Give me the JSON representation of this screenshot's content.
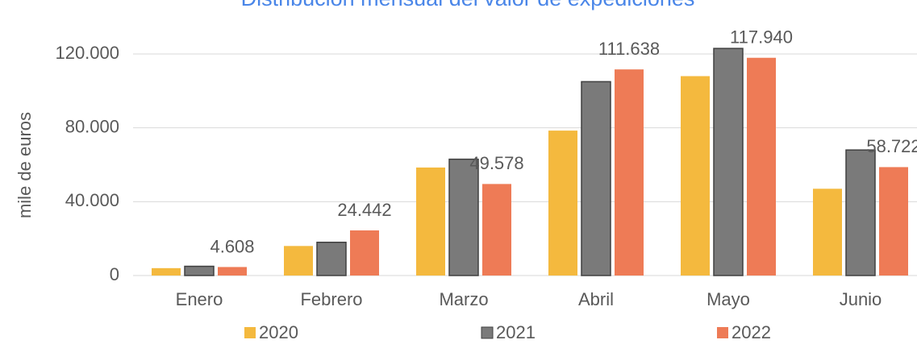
{
  "chart_data": {
    "type": "bar",
    "title": "Distribución mensual del valor de expediciones",
    "y_label": "mile de euros",
    "categories": [
      "Enero",
      "Febrero",
      "Marzo",
      "Abril",
      "Mayo",
      "Junio"
    ],
    "series": [
      {
        "name": "2020",
        "color": "#f4b93e",
        "values": [
          4000,
          16000,
          58500,
          78500,
          108000,
          47000
        ]
      },
      {
        "name": "2021",
        "color": "#7a7a7a",
        "values": [
          5000,
          18000,
          63000,
          105000,
          123000,
          68000
        ]
      },
      {
        "name": "2022",
        "color": "#ee7b56",
        "values": [
          4608,
          24442,
          49578,
          111638,
          117940,
          58722
        ],
        "value_labels": [
          "4.608",
          "24.442",
          "49.578",
          "111.638",
          "117.940",
          "58.722"
        ]
      }
    ],
    "ylim": [
      0,
      120000
    ],
    "yticks": [
      0,
      {
        "value": 40000,
        "label": "40.000"
      },
      {
        "value": 80000,
        "label": "80.000"
      },
      {
        "value": 120000,
        "label": "120.000"
      }
    ],
    "grid": true,
    "legend": "bottom"
  }
}
